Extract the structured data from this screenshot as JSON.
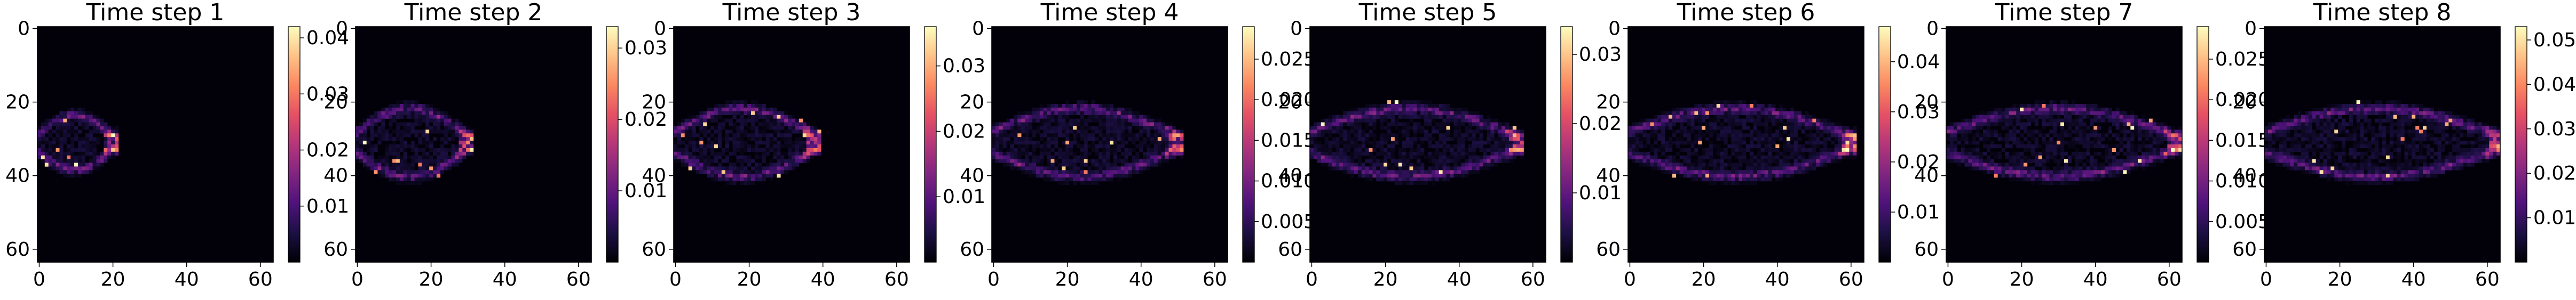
{
  "chart_data": [
    {
      "type": "heatmap",
      "title": "Time step 1",
      "grid_size": 64,
      "colormap": "magma",
      "x_ticks": [
        "0",
        "20",
        "40",
        "60"
      ],
      "y_ticks": [
        "0",
        "20",
        "40",
        "60"
      ],
      "colorbar_ticks": [
        {
          "value": 0.01,
          "label": "0.01"
        },
        {
          "value": 0.02,
          "label": "0.02"
        },
        {
          "value": 0.03,
          "label": "0.03"
        },
        {
          "value": 0.04,
          "label": "0.04"
        }
      ],
      "value_range": [
        0,
        0.042
      ],
      "plume": {
        "front_x": 20,
        "peak": 0.042
      }
    },
    {
      "type": "heatmap",
      "title": "Time step 2",
      "grid_size": 64,
      "colormap": "magma",
      "x_ticks": [
        "0",
        "20",
        "40",
        "60"
      ],
      "y_ticks": [
        "0",
        "20",
        "40",
        "60"
      ],
      "colorbar_ticks": [
        {
          "value": 0.01,
          "label": "0.01"
        },
        {
          "value": 0.02,
          "label": "0.02"
        },
        {
          "value": 0.03,
          "label": "0.03"
        }
      ],
      "value_range": [
        0,
        0.033
      ],
      "plume": {
        "front_x": 30,
        "peak": 0.033
      }
    },
    {
      "type": "heatmap",
      "title": "Time step 3",
      "grid_size": 64,
      "colormap": "magma",
      "x_ticks": [
        "0",
        "20",
        "40",
        "60"
      ],
      "y_ticks": [
        "0",
        "20",
        "40",
        "60"
      ],
      "colorbar_ticks": [
        {
          "value": 0.01,
          "label": "0.01"
        },
        {
          "value": 0.02,
          "label": "0.02"
        },
        {
          "value": 0.03,
          "label": "0.03"
        }
      ],
      "value_range": [
        0,
        0.036
      ],
      "plume": {
        "front_x": 38,
        "peak": 0.036
      }
    },
    {
      "type": "heatmap",
      "title": "Time step 4",
      "grid_size": 64,
      "colormap": "magma",
      "x_ticks": [
        "0",
        "20",
        "40",
        "60"
      ],
      "y_ticks": [
        "0",
        "20",
        "40",
        "60"
      ],
      "colorbar_ticks": [
        {
          "value": 0.005,
          "label": "0.005"
        },
        {
          "value": 0.01,
          "label": "0.010"
        },
        {
          "value": 0.015,
          "label": "0.015"
        },
        {
          "value": 0.02,
          "label": "0.020"
        },
        {
          "value": 0.025,
          "label": "0.025"
        }
      ],
      "value_range": [
        0,
        0.029
      ],
      "plume": {
        "front_x": 50,
        "peak": 0.029
      }
    },
    {
      "type": "heatmap",
      "title": "Time step 5",
      "grid_size": 64,
      "colormap": "magma",
      "x_ticks": [
        "0",
        "20",
        "40",
        "60"
      ],
      "y_ticks": [
        "0",
        "20",
        "40",
        "60"
      ],
      "colorbar_ticks": [
        {
          "value": 0.01,
          "label": "0.01"
        },
        {
          "value": 0.02,
          "label": "0.02"
        },
        {
          "value": 0.03,
          "label": "0.03"
        }
      ],
      "value_range": [
        0,
        0.034
      ],
      "plume": {
        "front_x": 56,
        "peak": 0.034
      }
    },
    {
      "type": "heatmap",
      "title": "Time step 6",
      "grid_size": 64,
      "colormap": "magma",
      "x_ticks": [
        "0",
        "20",
        "40",
        "60"
      ],
      "y_ticks": [
        "0",
        "20",
        "40",
        "60"
      ],
      "colorbar_ticks": [
        {
          "value": 0.01,
          "label": "0.01"
        },
        {
          "value": 0.02,
          "label": "0.02"
        },
        {
          "value": 0.03,
          "label": "0.03"
        },
        {
          "value": 0.04,
          "label": "0.04"
        }
      ],
      "value_range": [
        0,
        0.047
      ],
      "plume": {
        "front_x": 60,
        "peak": 0.047
      }
    },
    {
      "type": "heatmap",
      "title": "Time step 7",
      "grid_size": 64,
      "colormap": "magma",
      "x_ticks": [
        "0",
        "20",
        "40",
        "60"
      ],
      "y_ticks": [
        "0",
        "20",
        "40",
        "60"
      ],
      "colorbar_ticks": [
        {
          "value": 0.005,
          "label": "0.005"
        },
        {
          "value": 0.01,
          "label": "0.010"
        },
        {
          "value": 0.015,
          "label": "0.015"
        },
        {
          "value": 0.02,
          "label": "0.020"
        },
        {
          "value": 0.025,
          "label": "0.025"
        }
      ],
      "value_range": [
        0,
        0.029
      ],
      "plume": {
        "front_x": 62,
        "peak": 0.029
      }
    },
    {
      "type": "heatmap",
      "title": "Time step 8",
      "grid_size": 64,
      "colormap": "magma",
      "x_ticks": [
        "0",
        "20",
        "40",
        "60"
      ],
      "y_ticks": [
        "0",
        "20",
        "40",
        "60"
      ],
      "colorbar_ticks": [
        {
          "value": 0.01,
          "label": "0.01"
        },
        {
          "value": 0.02,
          "label": "0.02"
        },
        {
          "value": 0.03,
          "label": "0.03"
        },
        {
          "value": 0.04,
          "label": "0.04"
        },
        {
          "value": 0.05,
          "label": "0.05"
        }
      ],
      "value_range": [
        0,
        0.053
      ],
      "plume": {
        "front_x": 63,
        "peak": 0.053
      }
    }
  ],
  "colors": {
    "magma_stops": [
      "#000004",
      "#1c1044",
      "#4f127b",
      "#812581",
      "#b5367a",
      "#e55064",
      "#fb8761",
      "#fec287",
      "#fcfdbf"
    ]
  }
}
